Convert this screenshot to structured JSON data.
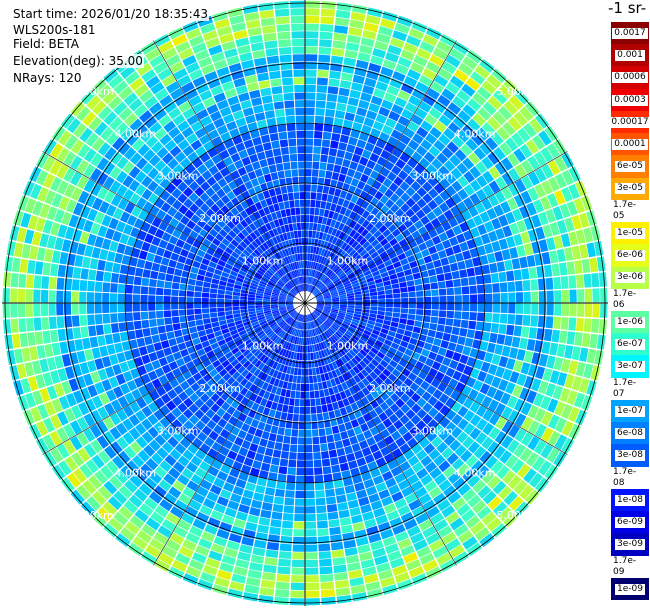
{
  "info": {
    "start_time": "Start time: 2026/01/20 18:35:43",
    "instrument": "WLS200s-181",
    "field": "Field: BETA",
    "elevation": "Elevation(deg): 35.00",
    "nrays": "NRays: 120"
  },
  "colorbar": {
    "title": "-1 sr-",
    "labels": [
      "0.0017",
      "0.001",
      "0.0006",
      "0.0003",
      "0.00017",
      "0.0001",
      "6e-05",
      "3e-05",
      "1.7e-05",
      "1e-05",
      "6e-06",
      "3e-06",
      "1.7e-06",
      "1e-06",
      "6e-07",
      "3e-07",
      "1.7e-07",
      "1e-07",
      "6e-08",
      "3e-08",
      "1.7e-08",
      "1e-08",
      "6e-09",
      "3e-09",
      "1.7e-09",
      "1e-09"
    ],
    "colors": [
      "#8b0000",
      "#b00000",
      "#d40000",
      "#f00000",
      "#ff2a00",
      "#ff5500",
      "#ff7f00",
      "#ffaa00",
      "#ffd000",
      "#fff000",
      "#e6ff1a",
      "#b8ff47",
      "#8aff75",
      "#5cffa2",
      "#2effcf",
      "#00f5ff",
      "#00ccff",
      "#00a3ff",
      "#0080ff",
      "#005cff",
      "#0038ff",
      "#0014ff",
      "#0000e6",
      "#0000c0",
      "#000099",
      "#000070"
    ]
  },
  "plot": {
    "range_labels": [
      "1.00km",
      "2.00km",
      "3.00km",
      "4.00km",
      "5.00km"
    ],
    "nrays": 120
  }
}
